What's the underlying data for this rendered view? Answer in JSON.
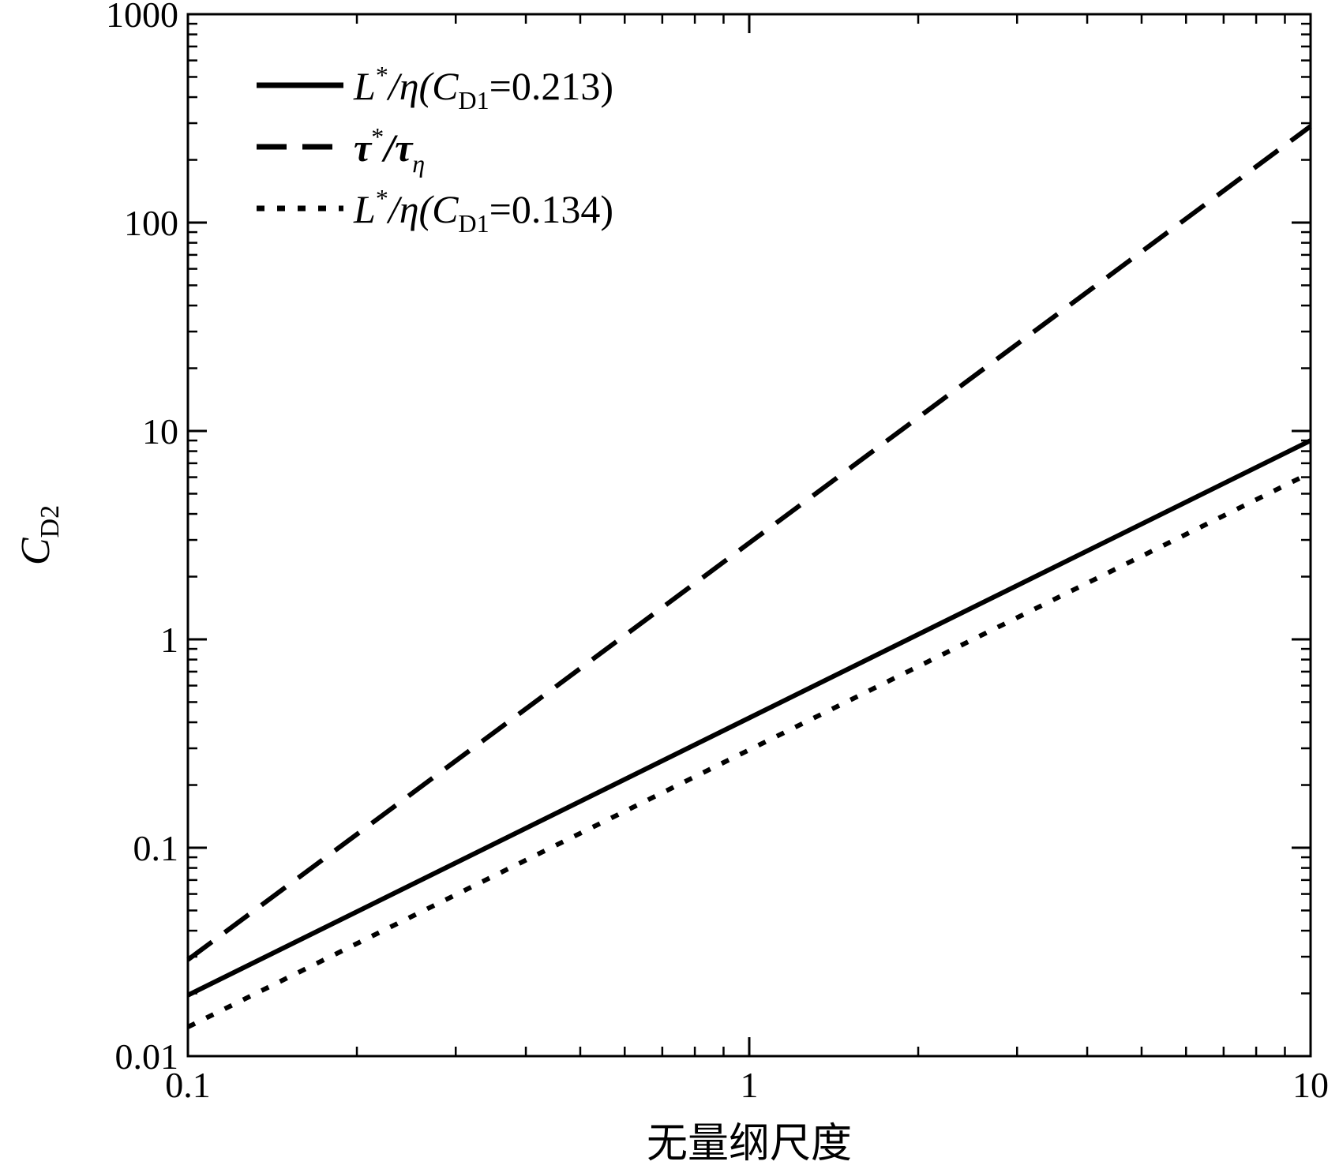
{
  "chart_data": {
    "type": "line",
    "x_scale": "log",
    "y_scale": "log",
    "xlim": [
      0.1,
      10
    ],
    "ylim": [
      0.01,
      1000
    ],
    "grid": false,
    "legend_position": "top-left",
    "xlabel": "无量纲尺度",
    "ylabel": {
      "main": "C",
      "sub": "D2"
    },
    "x_ticks": [
      {
        "value": 0.1,
        "label": "0.1"
      },
      {
        "value": 1,
        "label": "1"
      },
      {
        "value": 10,
        "label": "10"
      }
    ],
    "y_ticks": [
      {
        "value": 0.01,
        "label": "0.01"
      },
      {
        "value": 0.1,
        "label": "0.1"
      },
      {
        "value": 1,
        "label": "1"
      },
      {
        "value": 10,
        "label": "10"
      },
      {
        "value": 100,
        "label": "100"
      },
      {
        "value": 1000,
        "label": "1000"
      }
    ],
    "series": [
      {
        "legend": {
          "p1": "L",
          "sup": "*",
          "p2": "/η(",
          "p3": "C",
          "sub": "D1",
          "p4": "=0.213)"
        },
        "style": "solid",
        "x": [
          0.1,
          1,
          10
        ],
        "y": [
          0.0196,
          0.42,
          9.0
        ]
      },
      {
        "legend": {
          "p1": "τ",
          "sup": "*",
          "p2": "/τ",
          "sub": "η"
        },
        "style": "dashed",
        "x": [
          0.1,
          1,
          10
        ],
        "y": [
          0.029,
          2.9,
          290
        ]
      },
      {
        "legend": {
          "p1": "L",
          "sup": "*",
          "p2": "/η(",
          "p3": "C",
          "sub": "D1",
          "p4": "=0.134)"
        },
        "style": "dotted",
        "x": [
          0.1,
          1,
          10
        ],
        "y": [
          0.0138,
          0.295,
          6.3
        ]
      }
    ]
  }
}
